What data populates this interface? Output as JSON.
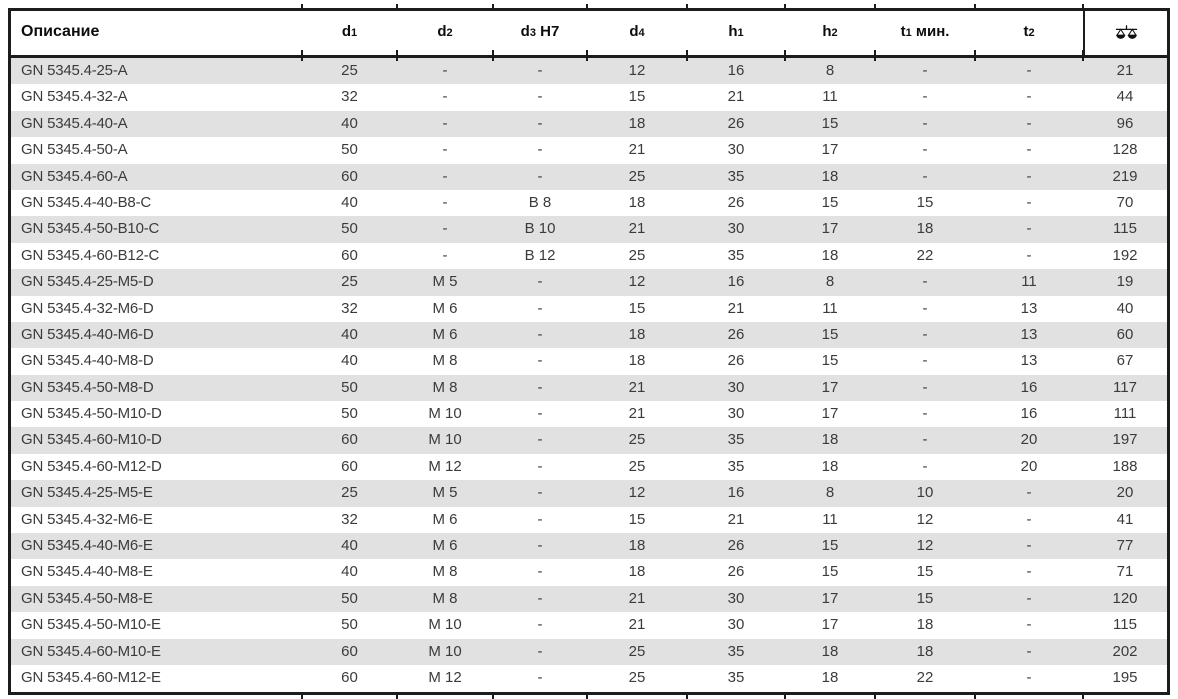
{
  "colors": {
    "stripe": "#e1e1e1",
    "border": "#1c1c1c",
    "header_text": "#0d0d0d",
    "body_text": "#3b3b3b",
    "background": "#ffffff"
  },
  "table": {
    "columns": [
      {
        "key": "description",
        "label": "Описание",
        "sub": "",
        "suffix": ""
      },
      {
        "key": "d1",
        "label": "d",
        "sub": "1",
        "suffix": ""
      },
      {
        "key": "d2",
        "label": "d",
        "sub": "2",
        "suffix": ""
      },
      {
        "key": "d3-h7",
        "label": "d",
        "sub": "3",
        "suffix": " H7"
      },
      {
        "key": "d4",
        "label": "d",
        "sub": "4",
        "suffix": ""
      },
      {
        "key": "h1",
        "label": "h",
        "sub": "1",
        "suffix": ""
      },
      {
        "key": "h2",
        "label": "h",
        "sub": "2",
        "suffix": ""
      },
      {
        "key": "t1-min",
        "label": "t",
        "sub": "1",
        "suffix": " мин."
      },
      {
        "key": "t2",
        "label": "t",
        "sub": "2",
        "suffix": ""
      },
      {
        "key": "weight",
        "label": "",
        "sub": "",
        "suffix": "",
        "icon": "weight-scales-icon"
      }
    ],
    "rows": [
      [
        "GN 5345.4-25-A",
        "25",
        "-",
        "-",
        "12",
        "16",
        "8",
        "-",
        "-",
        "21"
      ],
      [
        "GN 5345.4-32-A",
        "32",
        "-",
        "-",
        "15",
        "21",
        "11",
        "-",
        "-",
        "44"
      ],
      [
        "GN 5345.4-40-A",
        "40",
        "-",
        "-",
        "18",
        "26",
        "15",
        "-",
        "-",
        "96"
      ],
      [
        "GN 5345.4-50-A",
        "50",
        "-",
        "-",
        "21",
        "30",
        "17",
        "-",
        "-",
        "128"
      ],
      [
        "GN 5345.4-60-A",
        "60",
        "-",
        "-",
        "25",
        "35",
        "18",
        "-",
        "-",
        "219"
      ],
      [
        "GN 5345.4-40-B8-C",
        "40",
        "-",
        "B 8",
        "18",
        "26",
        "15",
        "15",
        "-",
        "70"
      ],
      [
        "GN 5345.4-50-B10-C",
        "50",
        "-",
        "B 10",
        "21",
        "30",
        "17",
        "18",
        "-",
        "115"
      ],
      [
        "GN 5345.4-60-B12-C",
        "60",
        "-",
        "B 12",
        "25",
        "35",
        "18",
        "22",
        "-",
        "192"
      ],
      [
        "GN 5345.4-25-M5-D",
        "25",
        "M 5",
        "-",
        "12",
        "16",
        "8",
        "-",
        "11",
        "19"
      ],
      [
        "GN 5345.4-32-M6-D",
        "32",
        "M 6",
        "-",
        "15",
        "21",
        "11",
        "-",
        "13",
        "40"
      ],
      [
        "GN 5345.4-40-M6-D",
        "40",
        "M 6",
        "-",
        "18",
        "26",
        "15",
        "-",
        "13",
        "60"
      ],
      [
        "GN 5345.4-40-M8-D",
        "40",
        "M 8",
        "-",
        "18",
        "26",
        "15",
        "-",
        "13",
        "67"
      ],
      [
        "GN 5345.4-50-M8-D",
        "50",
        "M 8",
        "-",
        "21",
        "30",
        "17",
        "-",
        "16",
        "117"
      ],
      [
        "GN 5345.4-50-M10-D",
        "50",
        "M 10",
        "-",
        "21",
        "30",
        "17",
        "-",
        "16",
        "111"
      ],
      [
        "GN 5345.4-60-M10-D",
        "60",
        "M 10",
        "-",
        "25",
        "35",
        "18",
        "-",
        "20",
        "197"
      ],
      [
        "GN 5345.4-60-M12-D",
        "60",
        "M 12",
        "-",
        "25",
        "35",
        "18",
        "-",
        "20",
        "188"
      ],
      [
        "GN 5345.4-25-M5-E",
        "25",
        "M 5",
        "-",
        "12",
        "16",
        "8",
        "10",
        "-",
        "20"
      ],
      [
        "GN 5345.4-32-M6-E",
        "32",
        "M 6",
        "-",
        "15",
        "21",
        "11",
        "12",
        "-",
        "41"
      ],
      [
        "GN 5345.4-40-M6-E",
        "40",
        "M 6",
        "-",
        "18",
        "26",
        "15",
        "12",
        "-",
        "77"
      ],
      [
        "GN 5345.4-40-M8-E",
        "40",
        "M 8",
        "-",
        "18",
        "26",
        "15",
        "15",
        "-",
        "71"
      ],
      [
        "GN 5345.4-50-M8-E",
        "50",
        "M 8",
        "-",
        "21",
        "30",
        "17",
        "15",
        "-",
        "120"
      ],
      [
        "GN 5345.4-50-M10-E",
        "50",
        "M 10",
        "-",
        "21",
        "30",
        "17",
        "18",
        "-",
        "115"
      ],
      [
        "GN 5345.4-60-M10-E",
        "60",
        "M 10",
        "-",
        "25",
        "35",
        "18",
        "18",
        "-",
        "202"
      ],
      [
        "GN 5345.4-60-M12-E",
        "60",
        "M 12",
        "-",
        "25",
        "35",
        "18",
        "22",
        "-",
        "195"
      ]
    ]
  }
}
